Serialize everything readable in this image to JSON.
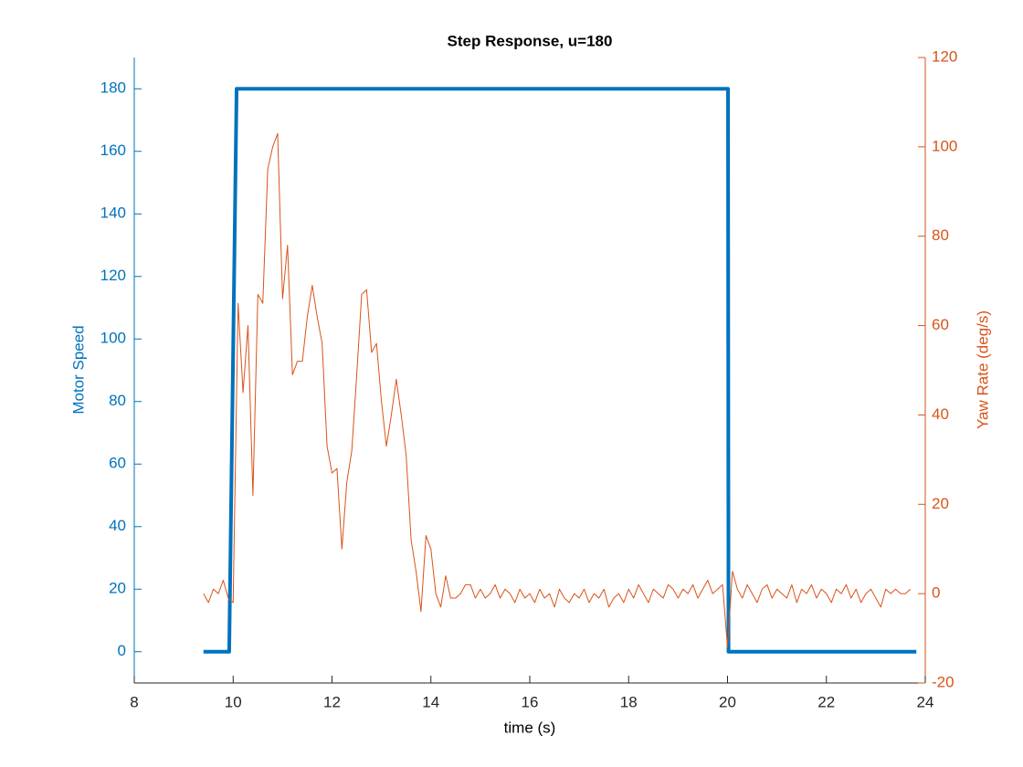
{
  "chart_data": {
    "type": "line",
    "title": "Step Response, u=180",
    "xlabel": "time (s)",
    "ylabel": "Motor Speed",
    "y2label": "Yaw Rate (deg/s)",
    "xlim": [
      8,
      24
    ],
    "xticks": [
      8,
      10,
      12,
      14,
      16,
      18,
      20,
      22,
      24
    ],
    "ylim": [
      -10,
      190
    ],
    "yticks": [
      0,
      20,
      40,
      60,
      80,
      100,
      120,
      140,
      160,
      180
    ],
    "y2lim": [
      -20,
      120
    ],
    "y2ticks": [
      -20,
      0,
      20,
      40,
      60,
      80,
      100,
      120
    ],
    "y_color": "#0072BD",
    "y2_color": "#D95319",
    "series": [
      {
        "name": "Motor Speed",
        "color": "#0072BD",
        "width": 4,
        "x": [
          9.4,
          9.92,
          10.07,
          20.01,
          20.02,
          23.82
        ],
        "values": [
          0,
          0,
          180,
          180,
          0,
          0
        ]
      },
      {
        "name": "Yaw Rate",
        "color": "#D95319",
        "width": 1,
        "axis": "y2",
        "x": [
          9.4,
          9.5,
          9.6,
          9.7,
          9.8,
          9.9,
          10.0,
          10.1,
          10.2,
          10.3,
          10.4,
          10.5,
          10.6,
          10.7,
          10.8,
          10.9,
          11.0,
          11.1,
          11.2,
          11.3,
          11.4,
          11.5,
          11.6,
          11.7,
          11.8,
          11.9,
          12.0,
          12.1,
          12.2,
          12.3,
          12.4,
          12.5,
          12.6,
          12.7,
          12.8,
          12.9,
          13.0,
          13.1,
          13.2,
          13.3,
          13.4,
          13.5,
          13.6,
          13.7,
          13.8,
          13.9,
          14.0,
          14.1,
          14.2,
          14.3,
          14.4,
          14.5,
          14.6,
          14.7,
          14.8,
          14.9,
          15.0,
          15.1,
          15.2,
          15.3,
          15.4,
          15.5,
          15.6,
          15.7,
          15.8,
          15.9,
          16.0,
          16.1,
          16.2,
          16.3,
          16.4,
          16.5,
          16.6,
          16.7,
          16.8,
          16.9,
          17.0,
          17.1,
          17.2,
          17.3,
          17.4,
          17.5,
          17.6,
          17.7,
          17.8,
          17.9,
          18.0,
          18.1,
          18.2,
          18.3,
          18.4,
          18.5,
          18.6,
          18.7,
          18.8,
          18.9,
          19.0,
          19.1,
          19.2,
          19.3,
          19.4,
          19.5,
          19.6,
          19.7,
          19.8,
          19.9,
          20.0,
          20.1,
          20.2,
          20.3,
          20.4,
          20.5,
          20.6,
          20.7,
          20.8,
          20.9,
          21.0,
          21.1,
          21.2,
          21.3,
          21.4,
          21.5,
          21.6,
          21.7,
          21.8,
          21.9,
          22.0,
          22.1,
          22.2,
          22.3,
          22.4,
          22.5,
          22.6,
          22.7,
          22.8,
          22.9,
          23.0,
          23.1,
          23.2,
          23.3,
          23.4,
          23.5,
          23.6,
          23.7
        ],
        "values": [
          0,
          -2,
          1,
          0,
          3,
          -1,
          -2,
          65,
          45,
          60,
          22,
          67,
          65,
          95,
          100,
          103,
          66,
          78,
          49,
          52,
          52,
          62,
          69,
          62,
          56,
          33,
          27,
          28,
          10,
          25,
          32,
          49,
          67,
          68,
          54,
          56,
          43,
          33,
          40,
          48,
          40,
          31,
          12,
          5,
          -4,
          13,
          10,
          0,
          -3,
          4,
          -1,
          -1,
          0,
          2,
          2,
          -1,
          1,
          -1,
          0,
          2,
          -1,
          1,
          0,
          -2,
          1,
          -1,
          0,
          -2,
          1,
          -1,
          0,
          -3,
          1,
          -1,
          -2,
          0,
          -1,
          1,
          -2,
          0,
          -1,
          1,
          -3,
          -1,
          0,
          -2,
          1,
          -1,
          2,
          0,
          -2,
          1,
          0,
          -1,
          2,
          1,
          -1,
          1,
          0,
          2,
          -1,
          1,
          3,
          0,
          1,
          2,
          -12,
          5,
          1,
          -1,
          2,
          0,
          -2,
          1,
          2,
          -1,
          1,
          0,
          -1,
          2,
          -2,
          1,
          0,
          2,
          -1,
          1,
          0,
          -2,
          1,
          0,
          2,
          -1,
          1,
          -2,
          0,
          1,
          -1,
          -3,
          1,
          0,
          1,
          0,
          0,
          1
        ]
      }
    ]
  }
}
